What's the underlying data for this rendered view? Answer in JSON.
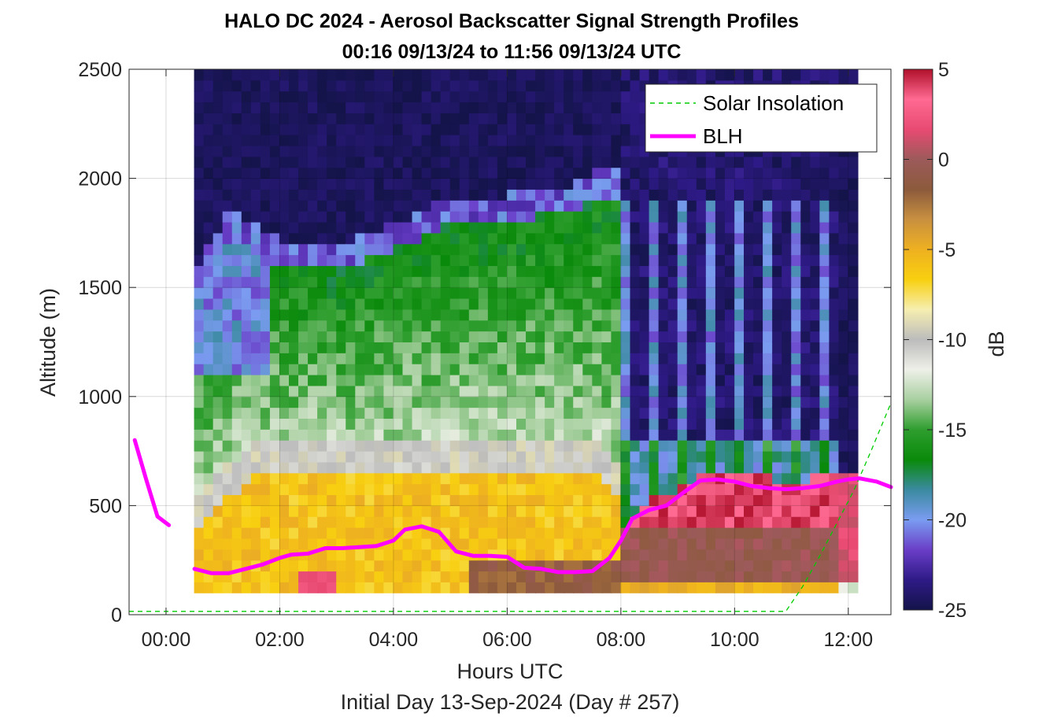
{
  "chart_data": {
    "type": "heatmap",
    "title": "HALO DC 2024 - Aerosol Backscatter Signal Strength Profiles",
    "subtitle": "00:16 09/13/24 to 11:56 09/13/24  UTC",
    "xlabel": "Hours UTC",
    "xlabel2": "Initial Day 13-Sep-2024 (Day # 257)",
    "ylabel": "Altitude (m)",
    "xlim": [
      -0.65,
      12.75
    ],
    "ylim": [
      0,
      2500
    ],
    "x_ticks": [
      0,
      2,
      4,
      6,
      8,
      10,
      12
    ],
    "x_tick_labels": [
      "00:00",
      "02:00",
      "04:00",
      "06:00",
      "08:00",
      "10:00",
      "12:00"
    ],
    "y_ticks": [
      0,
      500,
      1000,
      1500,
      2000,
      2500
    ],
    "y_tick_labels": [
      "0",
      "500",
      "1000",
      "1500",
      "2000",
      "2500"
    ],
    "grid": true,
    "legend_position": "top-right",
    "colorbar": {
      "label": "dB",
      "range": [
        -25,
        5
      ],
      "ticks": [
        5,
        0,
        -5,
        -10,
        -15,
        -20,
        -25
      ],
      "tick_labels": [
        "5",
        "0",
        "-5",
        "-10",
        "-15",
        "-20",
        "-25"
      ],
      "colors": [
        "#14144a",
        "#2e1a86",
        "#6a3ec8",
        "#7a9cf0",
        "#3a8aa0",
        "#0a8a0a",
        "#2e9e2e",
        "#a8d0a0",
        "#eef0e8",
        "#bcbcbc",
        "#f6eeb0",
        "#f8d010",
        "#eeb020",
        "#c89040",
        "#8c5a3c",
        "#9c5a5a",
        "#e84a72",
        "#ff6a92",
        "#b0102a"
      ]
    },
    "heatmap": {
      "time_start_hours": 0.5,
      "time_step_hours": 0.1667,
      "alt_start_m": 100,
      "alt_step_m": 50,
      "columns": 70,
      "rows": 48,
      "value_unit": "dB"
    },
    "series": [
      {
        "name": "BLH",
        "color": "#ff00ff",
        "segments": [
          {
            "x": [
              -0.55,
              -0.35,
              -0.15,
              0.05
            ],
            "y": [
              800,
              620,
              450,
              410
            ]
          },
          {
            "x": [
              0.5,
              0.8,
              1.1,
              1.4,
              1.7,
              2.0,
              2.2,
              2.5,
              2.8,
              3.1,
              3.4,
              3.7,
              4.0,
              4.2,
              4.5,
              4.8,
              5.1,
              5.4,
              5.7,
              6.0,
              6.3,
              6.6,
              6.9,
              7.2,
              7.5,
              7.8,
              8.0,
              8.2,
              8.5,
              8.8,
              9.1,
              9.4,
              9.7,
              10.0,
              10.3,
              10.6,
              10.9,
              11.2,
              11.5,
              11.8,
              12.0,
              12.2,
              12.5,
              12.75
            ],
            "y": [
              210,
              190,
              190,
              210,
              230,
              260,
              275,
              280,
              305,
              305,
              310,
              315,
              340,
              390,
              405,
              380,
              290,
              270,
              270,
              265,
              215,
              210,
              195,
              195,
              200,
              260,
              340,
              440,
              480,
              500,
              560,
              615,
              620,
              610,
              590,
              580,
              575,
              580,
              590,
              610,
              620,
              625,
              610,
              585
            ]
          }
        ]
      },
      {
        "name": "Solar Insolation",
        "color": "#00cc00",
        "style": "dashed",
        "x": [
          -0.65,
          10.9,
          11.2,
          11.5,
          11.8,
          12.1,
          12.4,
          12.75
        ],
        "y": [
          15,
          15,
          130,
          270,
          420,
          570,
          750,
          970
        ]
      }
    ]
  }
}
